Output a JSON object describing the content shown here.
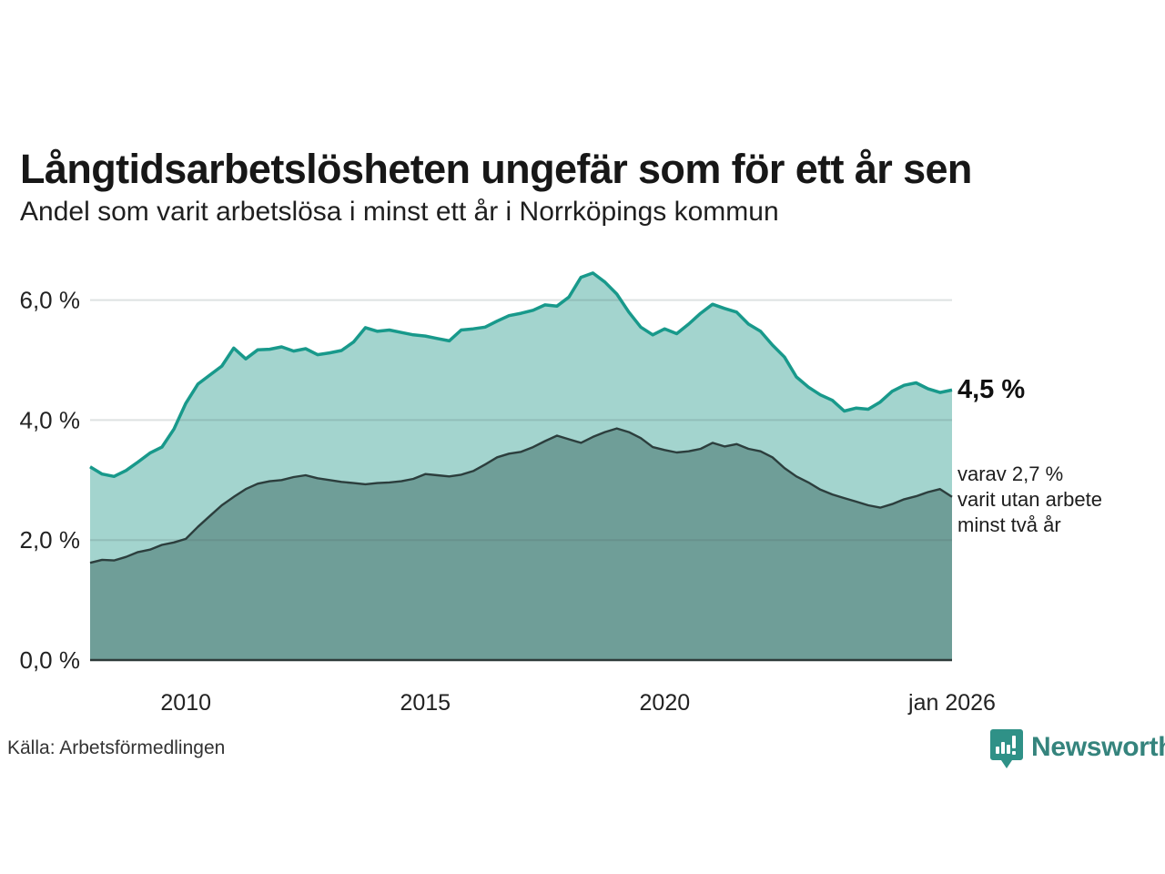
{
  "title": "Långtidsarbetslösheten ungefär som för ett år sen",
  "subtitle": "Andel som varit arbetslösa i minst ett år i Norrköpings kommun",
  "source": "Källa: Arbetsförmedlingen",
  "logo": {
    "text": "Newsworthy",
    "icon": "newsworthy-pin-barchart-icon",
    "icon_color": "#2f9187",
    "text_color": "#35847d"
  },
  "annotations": {
    "last_value_top": "4,5 %",
    "lower_lines": [
      "varav 2,7 %",
      "varit utan arbete",
      "minst två år"
    ]
  },
  "colors": {
    "series_1yr_stroke": "#18998b",
    "series_1yr_fill": "#a3d4ce",
    "series_2yr_stroke": "#2c3e3d",
    "series_2yr_fill": "#6f9e98",
    "gridline_overlay": "rgba(70,95,92,0.18)",
    "baseline": "#2e3b3a",
    "tick_label": "#222222"
  },
  "chart_data": {
    "type": "area",
    "title": "Långtidsarbetslösheten ungefär som för ett år sen",
    "xlabel": "",
    "ylabel": "",
    "xlim": [
      2008.0,
      2026.0
    ],
    "ylim": [
      0,
      6.6
    ],
    "grid": "horizontal",
    "legend_position": "none",
    "x_start": 2008.0,
    "x_step": 0.25,
    "x_ticks": [
      {
        "year": 2010,
        "label": "2010"
      },
      {
        "year": 2015,
        "label": "2015"
      },
      {
        "year": 2020,
        "label": "2020"
      },
      {
        "year": 2026,
        "label": "jan 2026"
      }
    ],
    "y_ticks": [
      {
        "value": 0,
        "label": "0,0 %"
      },
      {
        "value": 2,
        "label": "2,0 %"
      },
      {
        "value": 4,
        "label": "4,0 %"
      },
      {
        "value": 6,
        "label": "6,0 %"
      }
    ],
    "series": [
      {
        "name": "Andel arbetslösa minst ett år",
        "last_value": 4.5,
        "values": [
          3.22,
          3.1,
          3.06,
          3.16,
          3.3,
          3.45,
          3.55,
          3.85,
          4.28,
          4.6,
          4.75,
          4.9,
          5.2,
          5.02,
          5.17,
          5.18,
          5.22,
          5.15,
          5.19,
          5.09,
          5.12,
          5.16,
          5.3,
          5.54,
          5.48,
          5.5,
          5.46,
          5.42,
          5.4,
          5.36,
          5.32,
          5.5,
          5.52,
          5.55,
          5.65,
          5.74,
          5.78,
          5.83,
          5.92,
          5.9,
          6.05,
          6.38,
          6.45,
          6.3,
          6.1,
          5.8,
          5.55,
          5.42,
          5.52,
          5.44,
          5.6,
          5.78,
          5.93,
          5.86,
          5.8,
          5.6,
          5.48,
          5.25,
          5.05,
          4.72,
          4.55,
          4.42,
          4.33,
          4.15,
          4.2,
          4.18,
          4.3,
          4.48,
          4.58,
          4.62,
          4.52,
          4.46,
          4.5
        ]
      },
      {
        "name": "varav utan arbete minst två år",
        "last_value": 2.7,
        "values": [
          1.62,
          1.67,
          1.66,
          1.72,
          1.8,
          1.84,
          1.92,
          1.96,
          2.02,
          2.22,
          2.4,
          2.58,
          2.72,
          2.85,
          2.94,
          2.98,
          3.0,
          3.05,
          3.08,
          3.03,
          3.0,
          2.97,
          2.95,
          2.93,
          2.95,
          2.96,
          2.98,
          3.02,
          3.1,
          3.08,
          3.06,
          3.09,
          3.15,
          3.26,
          3.38,
          3.44,
          3.47,
          3.55,
          3.65,
          3.74,
          3.68,
          3.62,
          3.72,
          3.8,
          3.86,
          3.8,
          3.7,
          3.55,
          3.5,
          3.46,
          3.48,
          3.52,
          3.62,
          3.56,
          3.6,
          3.52,
          3.48,
          3.38,
          3.2,
          3.06,
          2.96,
          2.84,
          2.76,
          2.7,
          2.64,
          2.58,
          2.54,
          2.6,
          2.68,
          2.73,
          2.8,
          2.85,
          2.72
        ]
      }
    ]
  }
}
